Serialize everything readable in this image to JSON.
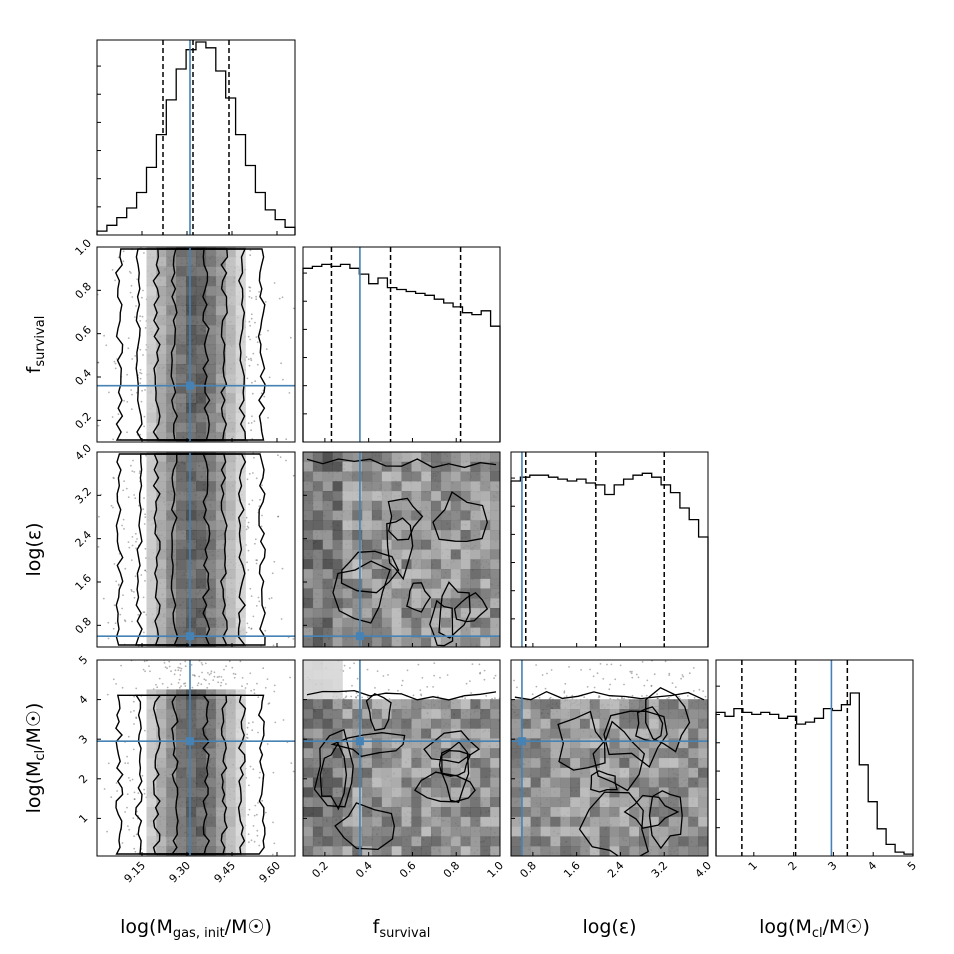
{
  "chart_data": {
    "type": "corner",
    "parameters": [
      {
        "label": "log(M",
        "label_sub": "gas, init",
        "label_suffix": "/M☉)",
        "range": [
          9.0,
          9.66
        ],
        "ticks": [
          9.15,
          9.3,
          9.45,
          9.6
        ],
        "tick_labels": [
          "9.15",
          "9.30",
          "9.45",
          "9.60"
        ],
        "truth": 9.31,
        "quantiles": [
          9.22,
          9.32,
          9.44
        ],
        "hist": [
          2,
          5,
          9,
          14,
          22,
          35,
          52,
          70,
          86,
          96,
          100,
          97,
          85,
          71,
          52,
          36,
          22,
          13,
          8,
          4
        ],
        "hist_max": 100
      },
      {
        "label": "f",
        "label_sub": "survival",
        "label_suffix": "",
        "range": [
          0.1,
          1.0
        ],
        "ticks": [
          0.2,
          0.4,
          0.6,
          0.8,
          1.0
        ],
        "tick_labels": [
          "0.2",
          "0.4",
          "0.6",
          "0.8",
          "1.0"
        ],
        "truth": 0.36,
        "quantiles": [
          0.23,
          0.5,
          0.82
        ],
        "hist": [
          90,
          91,
          92,
          91,
          92,
          90,
          87,
          82,
          85,
          80,
          79,
          78,
          77,
          76,
          74,
          72,
          70,
          67,
          66,
          68,
          60
        ],
        "hist_max": 100
      },
      {
        "label": "log(ε)",
        "label_sub": "",
        "label_suffix": "",
        "range": [
          0.4,
          4.0
        ],
        "ticks": [
          0.8,
          1.6,
          2.4,
          3.2,
          4.0
        ],
        "tick_labels": [
          "0.8",
          "1.6",
          "2.4",
          "3.2",
          "4.0"
        ],
        "truth": 0.6,
        "quantiles": [
          0.67,
          1.95,
          3.2
        ],
        "hist": [
          86,
          88,
          89,
          89,
          88,
          87,
          86,
          87,
          85,
          84,
          79,
          84,
          87,
          89,
          90,
          88,
          84,
          80,
          72,
          66,
          57
        ],
        "hist_max": 100
      },
      {
        "label": "log(M",
        "label_sub": "cl",
        "label_suffix": "/M☉)",
        "range": [
          0.05,
          5.0
        ],
        "ticks": [
          1,
          2,
          3,
          4,
          5
        ],
        "tick_labels": [
          "1",
          "2",
          "3",
          "4",
          "5"
        ],
        "truth": 2.95,
        "quantiles": [
          0.7,
          2.05,
          3.35
        ],
        "hist": [
          74,
          72,
          76,
          74,
          73,
          74,
          73,
          71,
          72,
          68,
          69,
          71,
          76,
          75,
          78,
          84,
          47,
          28,
          14,
          6,
          2,
          1
        ],
        "hist_max": 100
      }
    ],
    "truth_color": "#4682b4"
  }
}
